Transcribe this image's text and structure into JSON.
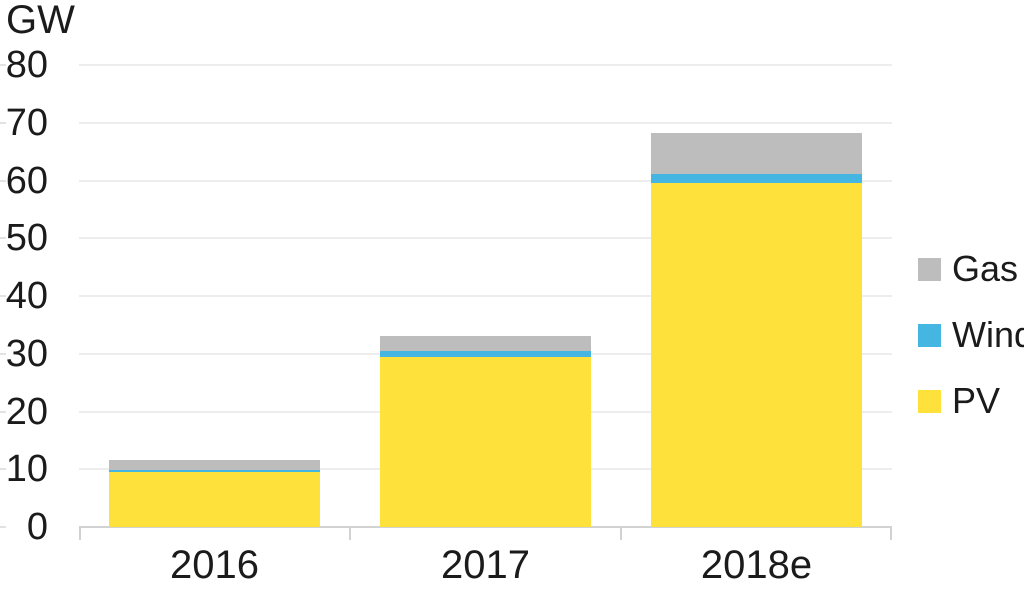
{
  "chart_data": {
    "type": "bar",
    "stacked": true,
    "title": "",
    "y_axis": {
      "label": "GW",
      "max": 80,
      "tick_step": 10,
      "ticks": [
        0,
        10,
        20,
        30,
        40,
        50,
        60,
        70,
        80
      ]
    },
    "categories": [
      "2016",
      "2017",
      "2018e"
    ],
    "series": [
      {
        "name": "PV",
        "color": "#FEE13B",
        "values": [
          9.5,
          29.5,
          59.5
        ]
      },
      {
        "name": "Wind",
        "color": "#45B6E2",
        "values": [
          0.4,
          1.0,
          1.7
        ]
      },
      {
        "name": "Gas",
        "color": "#BDBDBD",
        "values": [
          1.7,
          2.5,
          7.0
        ]
      }
    ],
    "totals": [
      11.6,
      33.0,
      68.2
    ],
    "legend": {
      "position": "right",
      "items": [
        "Gas",
        "Wind",
        "PV"
      ]
    },
    "grid": true,
    "colors": {
      "gridline": "#EDEDED",
      "axis": "#D2D2D2",
      "text": "#1B1B1B",
      "background": "#FFFFFF"
    }
  }
}
